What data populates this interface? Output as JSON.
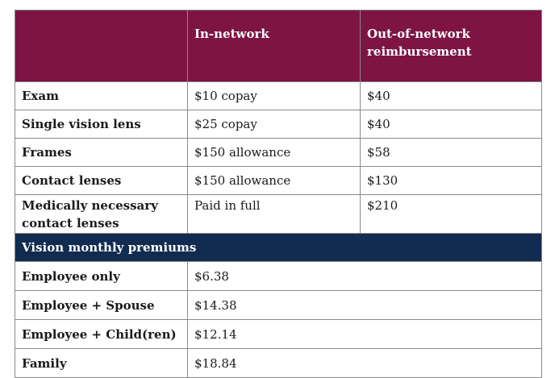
{
  "header": {
    "col1": "",
    "col2": "In-network",
    "col3": "Out-of-network reimbursement"
  },
  "benefits": [
    {
      "label": "Exam",
      "in_network": "$10 copay",
      "out_network": "$40"
    },
    {
      "label": "Single vision lens",
      "in_network": "$25 copay",
      "out_network": "$40"
    },
    {
      "label": "Frames",
      "in_network": "$150 allowance",
      "out_network": "$58"
    },
    {
      "label": "Contact lenses",
      "in_network": "$150 allowance",
      "out_network": "$130"
    },
    {
      "label": "Medically necessary contact lenses",
      "in_network": "Paid in full",
      "out_network": "$210"
    }
  ],
  "premiums_section": {
    "title": "Vision monthly premiums"
  },
  "premiums": [
    {
      "label": "Employee only",
      "amount": "$6.38"
    },
    {
      "label": "Employee + Spouse",
      "amount": "$14.38"
    },
    {
      "label": "Employee + Child(ren)",
      "amount": "$12.14"
    },
    {
      "label": "Family",
      "amount": "$18.84"
    }
  ],
  "colors": {
    "header_bg": "#7d1444",
    "section_bg": "#122b50",
    "border": "#8a8a8a"
  }
}
